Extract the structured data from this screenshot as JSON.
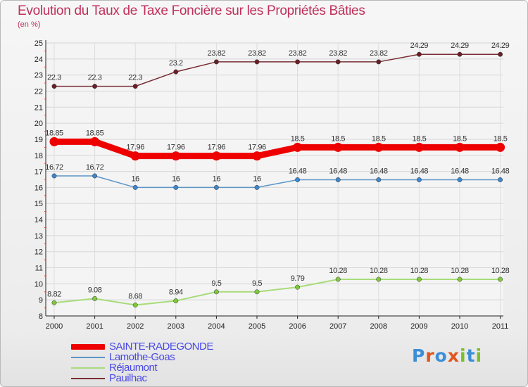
{
  "title": "Evolution du Taux de Taxe Foncière sur les Propriétés Bâties",
  "subtitle": "(en %)",
  "logo": {
    "text": "Proxiti",
    "colors": [
      "#3b8ed8",
      "#e0551f",
      "#3b8ed8",
      "#e0551f",
      "#7bbf2a",
      "#3b8ed8",
      "#7bbf2a"
    ]
  },
  "chart_data": {
    "type": "line",
    "x": [
      "2000",
      "2001",
      "2002",
      "2003",
      "2004",
      "2005",
      "2006",
      "2007",
      "2008",
      "2009",
      "2010",
      "2011"
    ],
    "ylim": [
      8,
      25
    ],
    "yticks": [
      8,
      9,
      10,
      11,
      12,
      13,
      14,
      15,
      16,
      17,
      18,
      19,
      20,
      21,
      22,
      23,
      24,
      25
    ],
    "grid": true,
    "legend_position": "bottom-left",
    "series": [
      {
        "name": "Pauilhac",
        "color": "#7a2e34",
        "marker": "#6a1f26",
        "values": [
          22.3,
          22.3,
          22.3,
          23.2,
          23.82,
          23.82,
          23.82,
          23.82,
          23.82,
          24.29,
          24.29,
          24.29
        ],
        "labels": [
          "22.3",
          "22.3",
          "22.3",
          "23.2",
          "23.82",
          "23.82",
          "23.82",
          "23.82",
          "23.82",
          "24.29",
          "24.29",
          "24.29"
        ],
        "width": 1.5
      },
      {
        "name": "SAINTE-RADEGONDE",
        "color": "#ee0000",
        "marker": "#ee0000",
        "values": [
          18.85,
          18.85,
          17.96,
          17.96,
          17.96,
          17.96,
          18.5,
          18.5,
          18.5,
          18.5,
          18.5,
          18.5
        ],
        "labels": [
          "18.85",
          "18.85",
          "17.96",
          "17.96",
          "17.96",
          "17.96",
          "18.5",
          "18.5",
          "18.5",
          "18.5",
          "18.5",
          "18.5"
        ],
        "width": 9
      },
      {
        "name": "Lamothe-Goas",
        "color": "#5b95c5",
        "marker": "#3f86cc",
        "values": [
          16.72,
          16.72,
          16,
          16,
          16,
          16,
          16.48,
          16.48,
          16.48,
          16.48,
          16.48,
          16.48
        ],
        "labels": [
          "16.72",
          "16.72",
          "16",
          "16",
          "16",
          "16",
          "16.48",
          "16.48",
          "16.48",
          "16.48",
          "16.48",
          "16.48"
        ],
        "width": 1.5
      },
      {
        "name": "Réjaumont",
        "color": "#a8dc7a",
        "marker": "#7fc83d",
        "values": [
          8.82,
          9.08,
          8.68,
          8.94,
          9.5,
          9.5,
          9.79,
          10.28,
          10.28,
          10.28,
          10.28,
          10.28
        ],
        "labels": [
          "8.82",
          "9.08",
          "8.68",
          "8.94",
          "9.5",
          "9.5",
          "9.79",
          "10.28",
          "10.28",
          "10.28",
          "10.28",
          "10.28"
        ],
        "width": 2
      }
    ],
    "legend": [
      "SAINTE-RADEGONDE",
      "Lamothe-Goas",
      "Réjaumont",
      "Pauilhac"
    ]
  }
}
